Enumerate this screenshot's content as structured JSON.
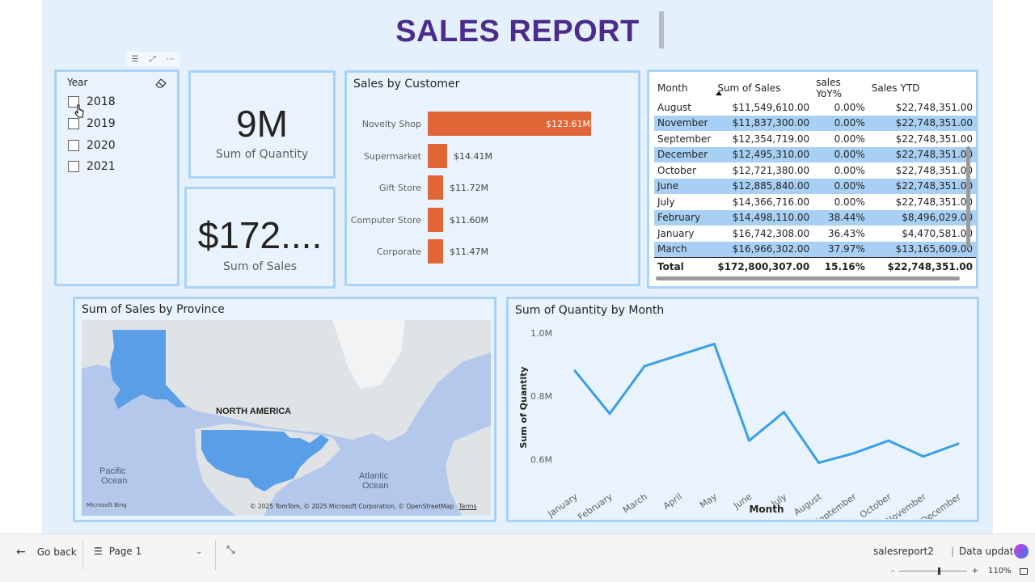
{
  "report_title": "SALES REPORT",
  "slicer": {
    "title": "Year",
    "options": [
      "2018",
      "2019",
      "2020",
      "2021"
    ],
    "icons": [
      "filter-icon",
      "focus-mode-icon",
      "more-options-icon",
      "eraser-icon"
    ]
  },
  "kpis": {
    "quantity": {
      "value": "9M",
      "label": "Sum of Quantity"
    },
    "sales": {
      "value": "$172....",
      "label": "Sum of Sales"
    }
  },
  "bar_chart": {
    "title": "Sales by Customer",
    "color": "#e06637"
  },
  "table": {
    "headers": [
      "Month",
      "Sum of Sales",
      "sales YoY%",
      "Sales YTD"
    ],
    "rows": [
      [
        "August",
        "$11,549,610.00",
        "0.00%",
        "$22,748,351.00"
      ],
      [
        "November",
        "$11,837,300.00",
        "0.00%",
        "$22,748,351.00"
      ],
      [
        "September",
        "$12,354,719.00",
        "0.00%",
        "$22,748,351.00"
      ],
      [
        "December",
        "$12,495,310.00",
        "0.00%",
        "$22,748,351.00"
      ],
      [
        "October",
        "$12,721,380.00",
        "0.00%",
        "$22,748,351.00"
      ],
      [
        "June",
        "$12,885,840.00",
        "0.00%",
        "$22,748,351.00"
      ],
      [
        "July",
        "$14,366,716.00",
        "0.00%",
        "$22,748,351.00"
      ],
      [
        "February",
        "$14,498,110.00",
        "38.44%",
        "$8,496,029.00"
      ],
      [
        "January",
        "$16,742,308.00",
        "36.43%",
        "$4,470,581.00"
      ],
      [
        "March",
        "$16,966,302.00",
        "37.97%",
        "$13,165,609.00"
      ]
    ],
    "total": [
      "Total",
      "$172,800,307.00",
      "15.16%",
      "$22,748,351.00"
    ]
  },
  "map": {
    "title": "Sum of Sales by Province",
    "labels": {
      "continent": "NORTH AMERICA",
      "pacific": "Pacific\nOcean",
      "atlantic": "Atlantic\nOcean"
    },
    "attribution": "© 2025 TomTom, © 2025 Microsoft Corporation, © OpenStreetMap",
    "terms": "Terms",
    "bing": "Microsoft Bing"
  },
  "line_chart": {
    "title": "Sum of Quantity by Month",
    "color": "#3a9ee6"
  },
  "chart_data": [
    {
      "type": "bar",
      "title": "Sales by Customer",
      "categories": [
        "Novelty Shop",
        "Supermarket",
        "Gift Store",
        "Computer Store",
        "Corporate"
      ],
      "values": [
        123.61,
        14.41,
        11.72,
        11.6,
        11.47
      ],
      "labels": [
        "$123.61M",
        "$14.41M",
        "$11.72M",
        "$11.60M",
        "$11.47M"
      ],
      "unit": "$M"
    },
    {
      "type": "line",
      "title": "Sum of Quantity by Month",
      "xlabel": "Month",
      "ylabel": "Sum of Quantity",
      "categories": [
        "January",
        "February",
        "March",
        "April",
        "May",
        "June",
        "July",
        "August",
        "September",
        "October",
        "November",
        "December"
      ],
      "values": [
        0.88,
        0.745,
        0.895,
        0.93,
        0.965,
        0.66,
        0.75,
        0.59,
        0.62,
        0.66,
        0.61,
        0.65
      ],
      "yticks": [
        0.6,
        0.8,
        1.0
      ],
      "ytick_labels": [
        "0.6M",
        "0.8M",
        "1.0M"
      ],
      "ylim": [
        0.52,
        1.03
      ]
    }
  ],
  "footer": {
    "go_back": "Go back",
    "page": "Page 1",
    "report_name": "salesreport2",
    "data_update": "Data update",
    "zoom": "110%",
    "zoom_minus": "-",
    "zoom_plus": "+"
  }
}
